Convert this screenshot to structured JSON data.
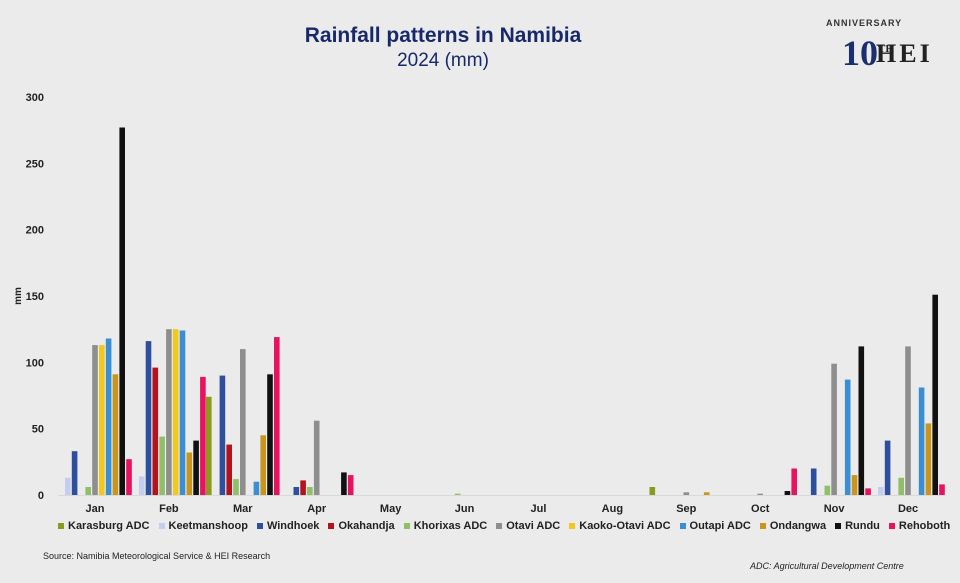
{
  "title": "Rainfall patterns in Namibia",
  "subtitle": "2024 (mm)",
  "logo": {
    "arc_text": "ANNIVERSARY",
    "number": "10",
    "suffix": "TH",
    "brand": "HEI"
  },
  "source": "Source: Namibia Meteorological Service & HEI Research",
  "note_mark": "",
  "note": "ADC: Agricultural Development Centre",
  "chart_data": {
    "type": "bar",
    "title": "Rainfall patterns in Namibia",
    "subtitle": "2024 (mm)",
    "xlabel": "",
    "ylabel": "mm",
    "ylim": [
      0,
      300
    ],
    "yticks": [
      0,
      50,
      100,
      150,
      200,
      250,
      300
    ],
    "grid": false,
    "legend_position": "bottom",
    "categories": [
      "Jan",
      "Feb",
      "Mar",
      "Apr",
      "May",
      "Jun",
      "Jul",
      "Aug",
      "Sep",
      "Oct",
      "Nov",
      "Dec"
    ],
    "series": [
      {
        "name": "Karasburg ADC",
        "color": "#8a9a1c",
        "values": [
          0,
          0,
          74,
          0,
          0,
          0,
          0,
          0,
          6,
          0,
          0,
          0
        ]
      },
      {
        "name": "Keetmanshoop",
        "color": "#c5cdf0",
        "values": [
          13,
          14,
          0,
          0,
          0,
          0,
          0,
          0,
          0,
          0,
          0,
          6
        ]
      },
      {
        "name": "Windhoek",
        "color": "#2e4f9e",
        "values": [
          33,
          116,
          90,
          6,
          0,
          0,
          0,
          0,
          0,
          0,
          20,
          41
        ]
      },
      {
        "name": "Okahandja",
        "color": "#b5121b",
        "values": [
          0,
          96,
          38,
          11,
          0,
          0,
          0,
          0,
          0,
          0,
          0,
          0
        ]
      },
      {
        "name": "Khorixas ADC",
        "color": "#8fbf67",
        "values": [
          6,
          44,
          12,
          6,
          0,
          1,
          0,
          0,
          0,
          0,
          7,
          13
        ]
      },
      {
        "name": "Otavi ADC",
        "color": "#8e8e8e",
        "values": [
          113,
          125,
          110,
          56,
          0,
          0,
          0,
          0,
          2,
          1,
          99,
          112
        ]
      },
      {
        "name": "Kaoko-Otavi ADC",
        "color": "#f2c81c",
        "values": [
          113,
          125,
          0,
          0,
          0,
          0,
          0,
          0,
          0,
          0,
          0,
          0
        ]
      },
      {
        "name": "Outapi ADC",
        "color": "#3b8ed2",
        "values": [
          118,
          124,
          10,
          0,
          0,
          0,
          0,
          0,
          0,
          0,
          87,
          81
        ]
      },
      {
        "name": "Ondangwa",
        "color": "#c9951c",
        "values": [
          91,
          32,
          45,
          0,
          0,
          0,
          0,
          0,
          2,
          0,
          15,
          54
        ]
      },
      {
        "name": "Rundu",
        "color": "#111111",
        "values": [
          277,
          41,
          91,
          17,
          0,
          0,
          0,
          0,
          0,
          3,
          112,
          151
        ]
      },
      {
        "name": "Rehoboth",
        "color": "#e8125f",
        "values": [
          27,
          89,
          119,
          15,
          0,
          0,
          0,
          0,
          0,
          20,
          5,
          8
        ]
      }
    ]
  }
}
